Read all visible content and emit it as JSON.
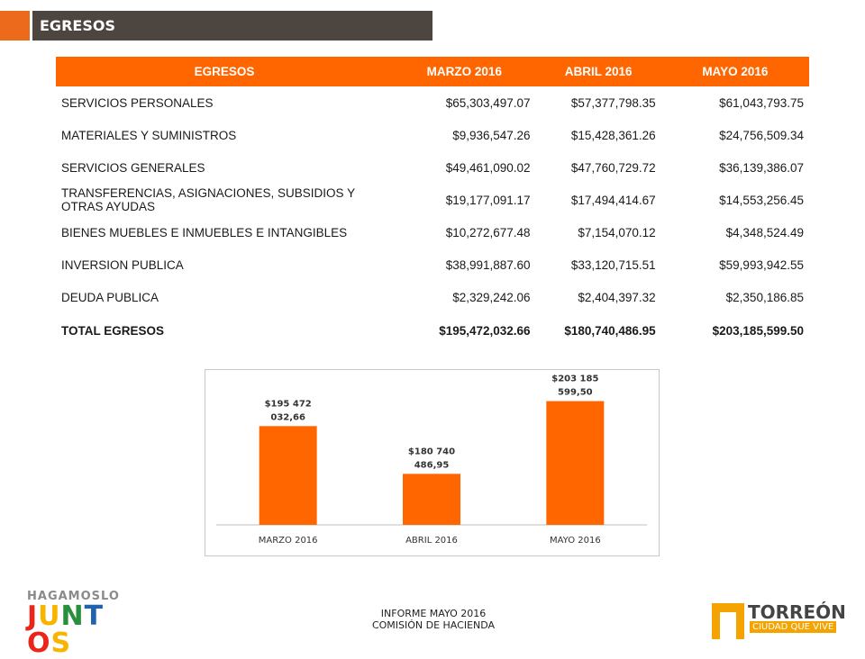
{
  "header": {
    "title": "EGRESOS"
  },
  "table": {
    "columns": [
      "EGRESOS",
      "MARZO 2016",
      "ABRIL 2016",
      "MAYO 2016"
    ],
    "rows": [
      [
        "SERVICIOS PERSONALES",
        "$65,303,497.07",
        "$57,377,798.35",
        "$61,043,793.75"
      ],
      [
        "MATERIALES Y SUMINISTROS",
        "$9,936,547.26",
        "$15,428,361.26",
        "$24,756,509.34"
      ],
      [
        "SERVICIOS GENERALES",
        "$49,461,090.02",
        "$47,760,729.72",
        "$36,139,386.07"
      ],
      [
        "TRANSFERENCIAS, ASIGNACIONES, SUBSIDIOS Y OTRAS AYUDAS",
        "$19,177,091.17",
        "$17,494,414.67",
        "$14,553,256.45"
      ],
      [
        "BIENES MUEBLES E INMUEBLES E INTANGIBLES",
        "$10,272,677.48",
        "$7,154,070.12",
        "$4,348,524.49"
      ],
      [
        "INVERSION PUBLICA",
        "$38,991,887.60",
        "$33,120,715.51",
        "$59,993,942.55"
      ],
      [
        "DEUDA PUBLICA",
        "$2,329,242.06",
        "$2,404,397.32",
        "$2,350,186.85"
      ]
    ],
    "total": [
      "TOTAL EGRESOS",
      "$195,472,032.66",
      "$180,740,486.95",
      "$203,185,599.50"
    ]
  },
  "chart_data": {
    "type": "bar",
    "categories": [
      "MARZO 2016",
      "ABRIL 2016",
      "MAYO 2016"
    ],
    "values": [
      195472032.66,
      180740486.95,
      203185599.5
    ],
    "data_labels": [
      [
        "$195 472",
        "032,66"
      ],
      [
        "$180 740",
        "486,95"
      ],
      [
        "$203 185",
        "599,50"
      ]
    ],
    "bar_color": "#ff6600",
    "title": "",
    "xlabel": "",
    "ylabel": "",
    "ylim": [
      165000000,
      210000000
    ],
    "grid": false,
    "legend": "none"
  },
  "footer": {
    "line1": "INFORME MAYO 2016",
    "line2": "COMISIÓN DE HACIENDA"
  },
  "logo_left": {
    "top": "HAGAMOSLO",
    "main": "JUNTOS",
    "colors": [
      "#e8261c",
      "#f7b500",
      "#2a8f3c",
      "#1f62b0",
      "#e8261c",
      "#f7b500"
    ]
  },
  "logo_right": {
    "name": "TORREÓN",
    "tag": "CIUDAD QUE VIVE"
  }
}
